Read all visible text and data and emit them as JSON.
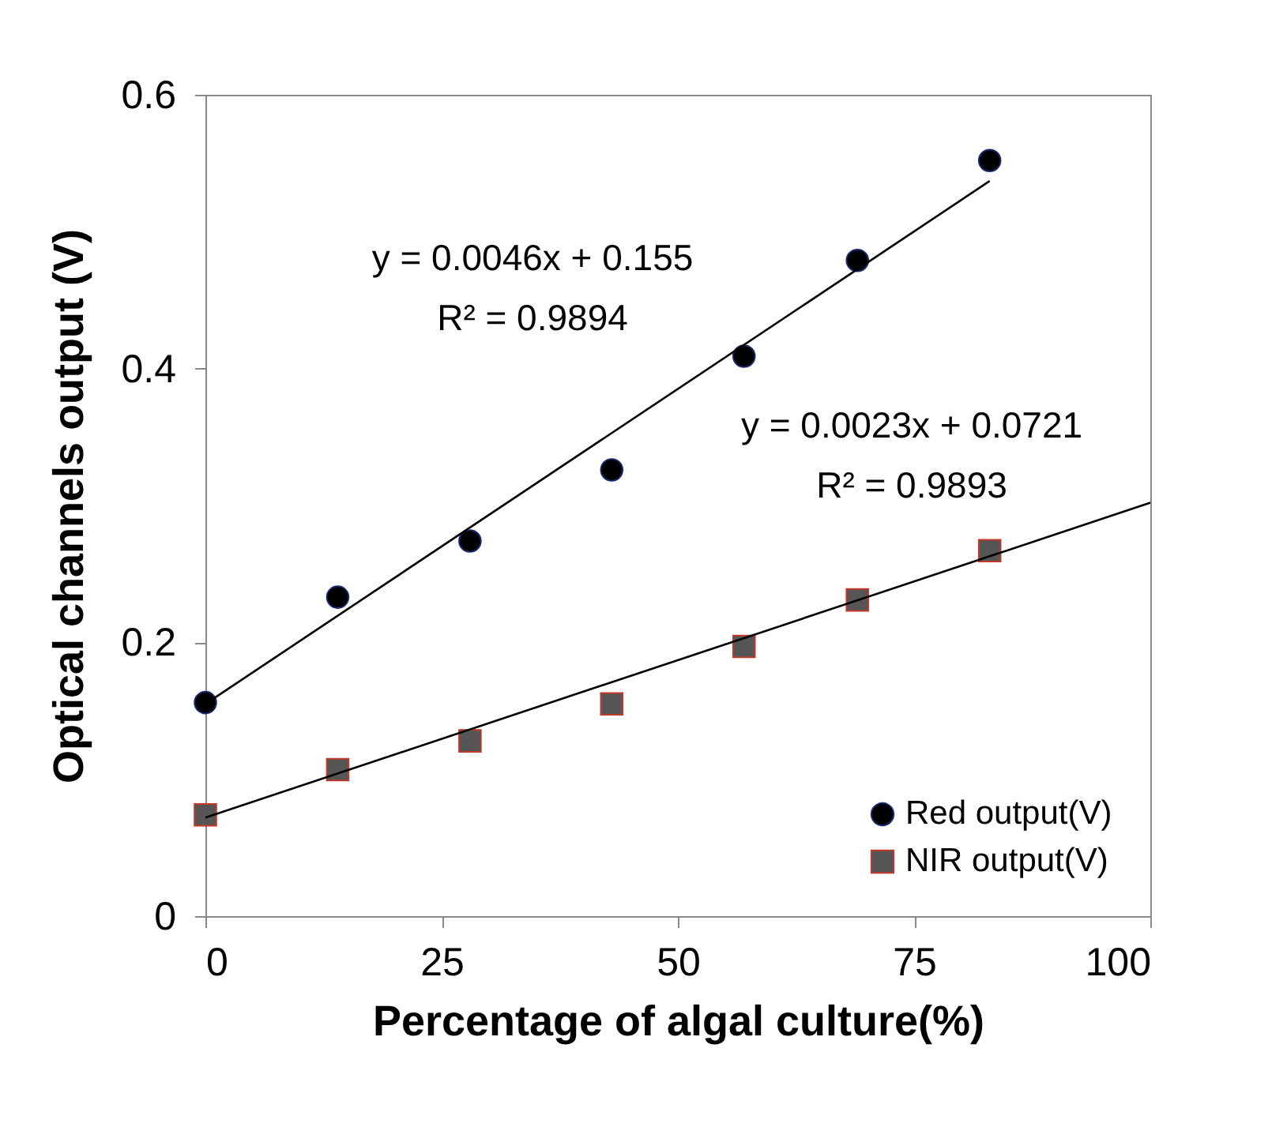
{
  "chart_data": {
    "type": "scatter",
    "xlabel": "Percentage of algal culture(%)",
    "ylabel": "Optical channels output (V)",
    "xlim": [
      0,
      100
    ],
    "xticks": [
      0,
      25,
      50,
      75,
      100
    ],
    "ylim": [
      0,
      0.6
    ],
    "yticks": [
      0,
      0.2,
      0.4,
      0.6
    ],
    "grid": false,
    "legend": "bottom right",
    "x": [
      0,
      14,
      28,
      43,
      57,
      69,
      83
    ],
    "series": [
      {
        "name": "Red output(V)",
        "color": "#000000",
        "marker": "circle",
        "values": [
          0.156,
          0.233,
          0.274,
          0.326,
          0.409,
          0.479,
          0.552
        ]
      },
      {
        "name": "NIR output(V)",
        "color": "#555555",
        "marker": "square",
        "values": [
          0.074,
          0.107,
          0.128,
          0.155,
          0.197,
          0.231,
          0.267
        ]
      },
      {
        "type": "line",
        "color": "#000000",
        "marker": "none",
        "line_style": "solid",
        "x": [
          0,
          83
        ],
        "values": [
          0.155,
          0.537
        ]
      },
      {
        "type": "line",
        "color": "#000000",
        "marker": "none",
        "line_style": "solid",
        "x": [
          0,
          100
        ],
        "values": [
          0.072,
          0.302
        ]
      }
    ],
    "annotations": [
      "y = 0.0046x + 0.155",
      "R² = 0.9894",
      "y = 0.0023x + 0.0721",
      "R² = 0.9893"
    ]
  }
}
